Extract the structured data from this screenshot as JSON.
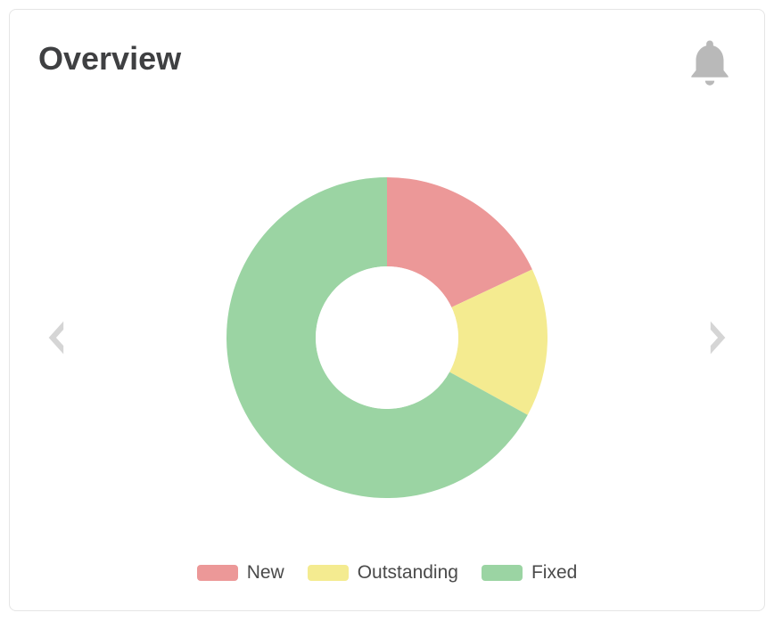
{
  "card": {
    "title": "Overview",
    "title_fontsize": 36,
    "title_color": "#3f4042",
    "background_color": "#ffffff",
    "border_color": "#e5e5e5",
    "border_radius": 8
  },
  "icons": {
    "bell_color": "#b9b9b9",
    "nav_arrow_color": "#d5d5d5"
  },
  "chart": {
    "type": "donut",
    "outer_radius": 180,
    "inner_radius": 80,
    "center_fill": "#ffffff",
    "start_angle_deg": -90,
    "series": [
      {
        "key": "new",
        "label": "New",
        "value": 18,
        "color": "#ec9898"
      },
      {
        "key": "outstanding",
        "label": "Outstanding",
        "value": 15,
        "color": "#f4eb90"
      },
      {
        "key": "fixed",
        "label": "Fixed",
        "value": 67,
        "color": "#9bd4a3"
      }
    ]
  },
  "legend": {
    "swatch_width": 46,
    "swatch_height": 18,
    "swatch_radius": 4,
    "font_size": 21,
    "text_color": "#4a4a4a"
  }
}
